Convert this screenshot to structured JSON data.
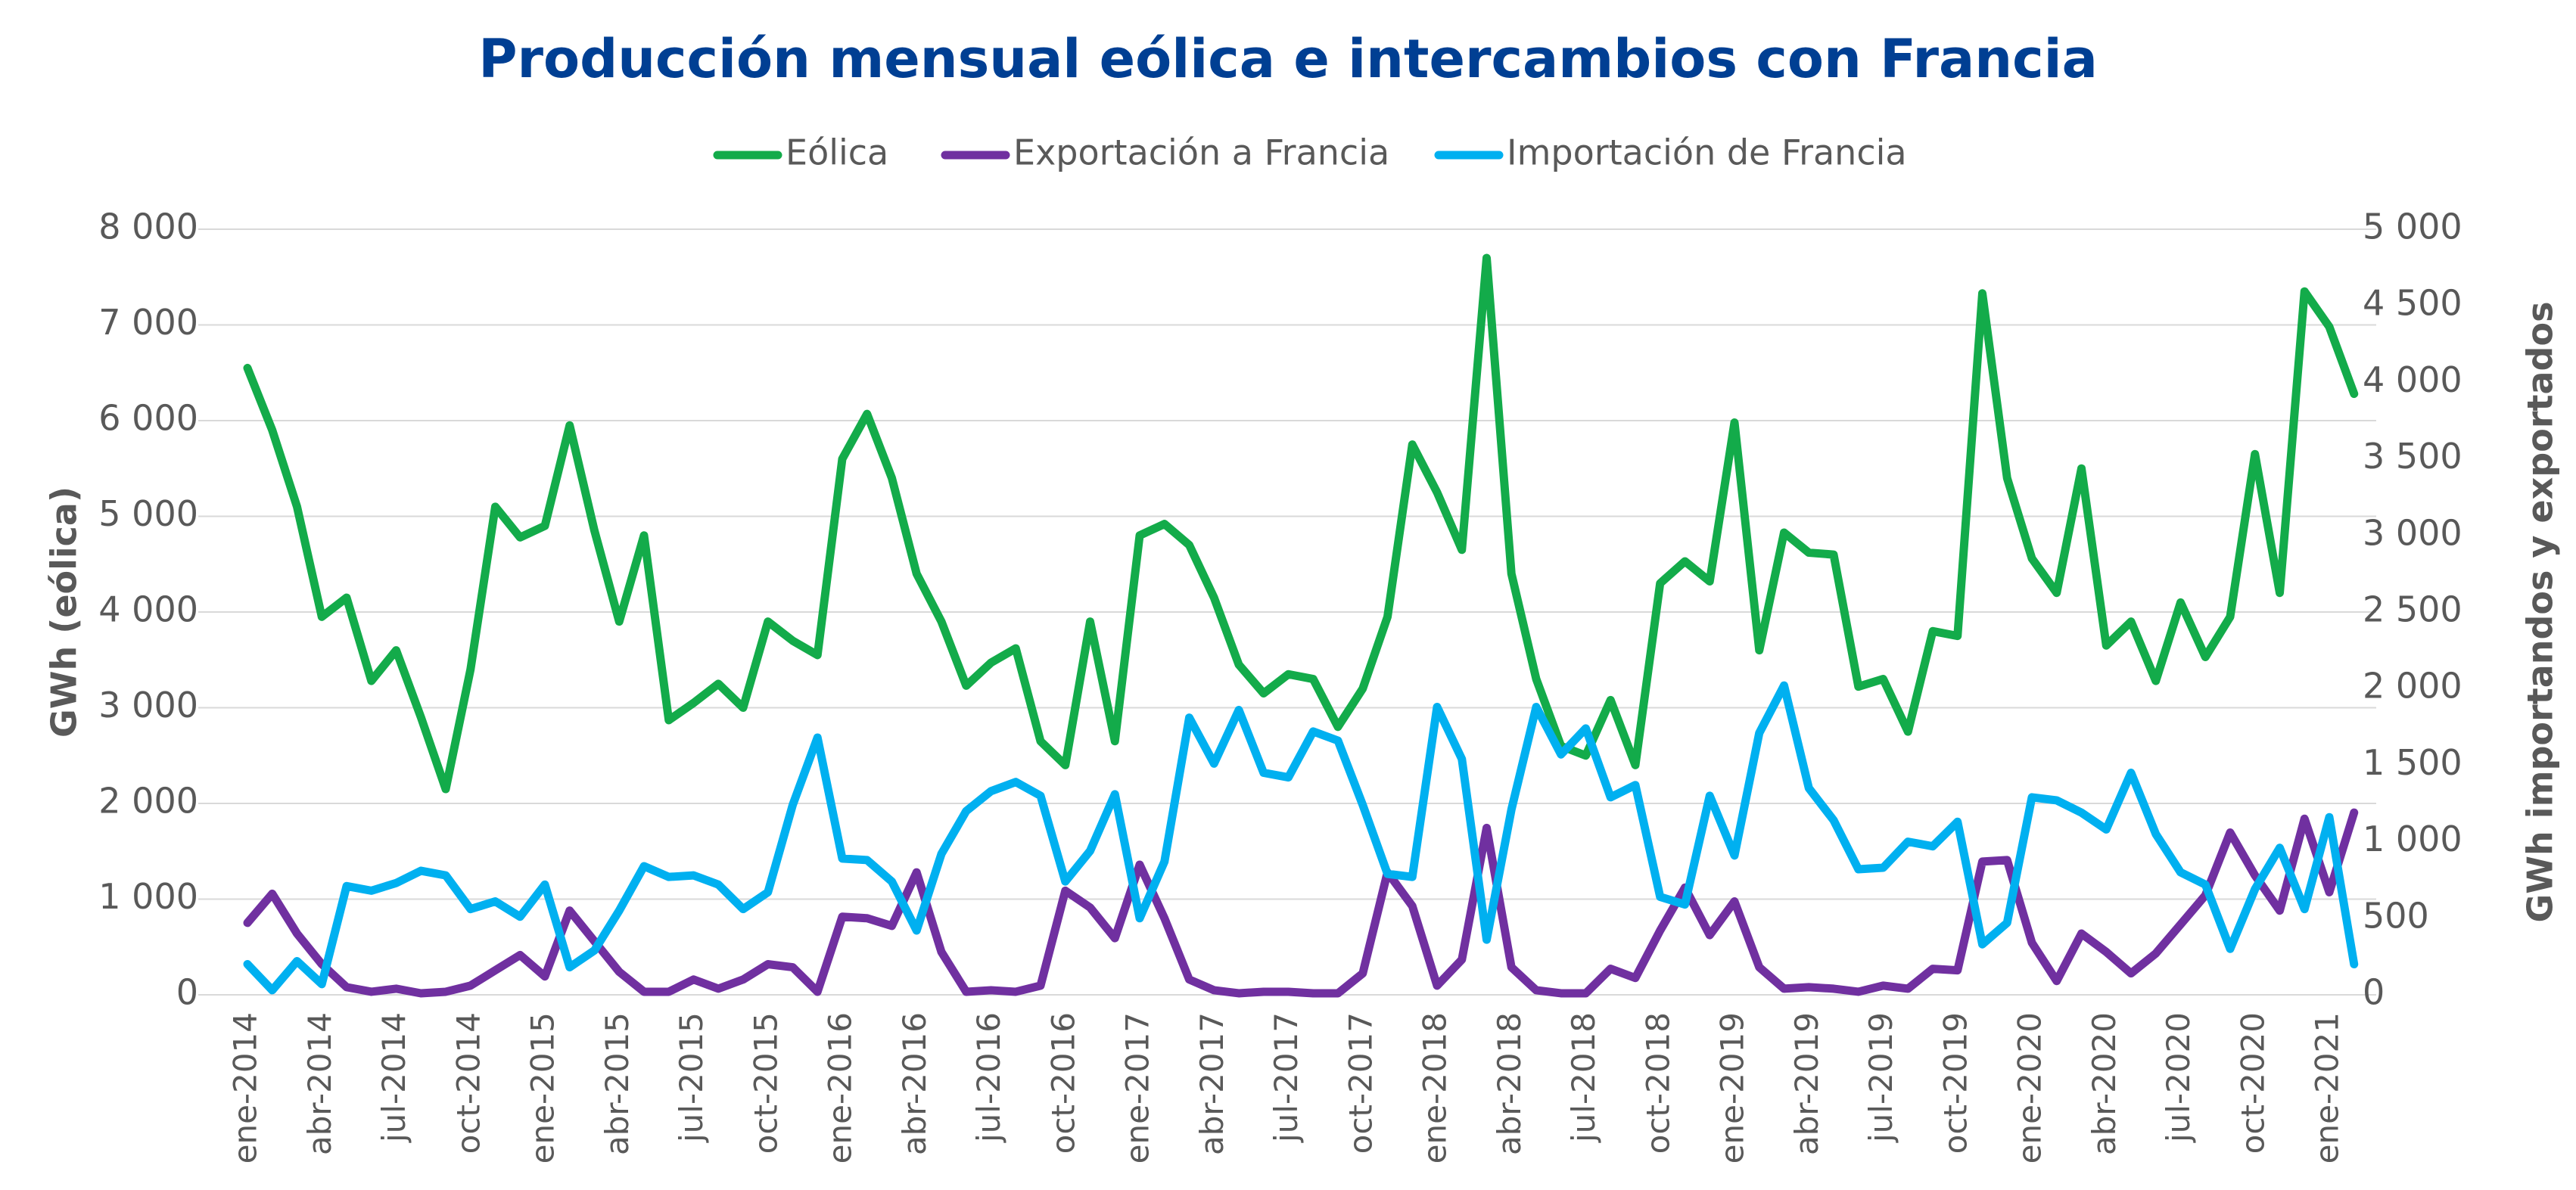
{
  "chart_data": {
    "type": "line",
    "title": "Producción mensual eólica e intercambios con Francia",
    "ylabel": "GWh (eólica)",
    "y2label": "GWh importandos y exportados",
    "categories": [
      "ene-2014",
      null,
      null,
      "abr-2014",
      null,
      null,
      "jul-2014",
      null,
      null,
      "oct-2014",
      null,
      null,
      "ene-2015",
      null,
      null,
      "abr-2015",
      null,
      null,
      "jul-2015",
      null,
      null,
      "oct-2015",
      null,
      null,
      "ene-2016",
      null,
      null,
      "abr-2016",
      null,
      null,
      "jul-2016",
      null,
      null,
      "oct-2016",
      null,
      null,
      "ene-2017",
      null,
      null,
      "abr-2017",
      null,
      null,
      "jul-2017",
      null,
      null,
      "oct-2017",
      null,
      null,
      "ene-2018",
      null,
      null,
      "abr-2018",
      null,
      null,
      "jul-2018",
      null,
      null,
      "oct-2018",
      null,
      null,
      "ene-2019",
      null,
      null,
      "abr-2019",
      null,
      null,
      "jul-2019",
      null,
      null,
      "oct-2019",
      null,
      null,
      "ene-2020",
      null,
      null,
      "abr-2020",
      null,
      null,
      "jul-2020",
      null,
      null,
      "oct-2020",
      null,
      null,
      "ene-2021",
      null
    ],
    "series": [
      {
        "name": "Eólica",
        "color": "#13ab4a",
        "axis": "y",
        "values": [
          6550,
          5900,
          5100,
          3950,
          4150,
          3280,
          3600,
          2900,
          2150,
          3400,
          5100,
          4780,
          4900,
          5950,
          4850,
          3900,
          4800,
          2870,
          3050,
          3250,
          3000,
          3900,
          3700,
          3550,
          5600,
          6070,
          5400,
          4400,
          3900,
          3230,
          3470,
          3620,
          2650,
          2400,
          3900,
          2650,
          4800,
          4920,
          4700,
          4150,
          3450,
          3150,
          3350,
          3300,
          2800,
          3200,
          3950,
          5750,
          5250,
          4650,
          7700,
          4400,
          3300,
          2600,
          2500,
          3080,
          2400,
          4300,
          4530,
          4320,
          5980,
          3600,
          4830,
          4620,
          4600,
          3220,
          3300,
          2750,
          3800,
          3750,
          7330,
          5400,
          4560,
          4200,
          5500,
          3650,
          3900,
          3280,
          4100,
          3530,
          3950,
          5650,
          4200,
          7350,
          6980,
          6280
        ]
      },
      {
        "name": "Exportación a Francia",
        "color": "#7030a0",
        "axis": "y2",
        "values": [
          470,
          660,
          400,
          200,
          50,
          20,
          40,
          10,
          20,
          60,
          160,
          260,
          120,
          550,
          350,
          150,
          20,
          20,
          100,
          40,
          100,
          200,
          180,
          20,
          510,
          500,
          450,
          800,
          280,
          20,
          30,
          20,
          60,
          680,
          570,
          370,
          850,
          500,
          100,
          30,
          10,
          20,
          20,
          10,
          10,
          140,
          800,
          580,
          60,
          230,
          1090,
          180,
          30,
          10,
          10,
          170,
          110,
          420,
          700,
          390,
          610,
          180,
          40,
          50,
          40,
          20,
          60,
          40,
          170,
          160,
          870,
          880,
          340,
          90,
          400,
          280,
          140,
          270,
          460,
          650,
          1060,
          780,
          550,
          1150,
          670,
          1190
        ]
      },
      {
        "name": "Importación de Francia",
        "color": "#00b0f0",
        "axis": "y2",
        "values": [
          200,
          30,
          220,
          70,
          710,
          680,
          730,
          810,
          780,
          560,
          610,
          510,
          720,
          180,
          290,
          550,
          840,
          770,
          780,
          720,
          560,
          670,
          1240,
          1680,
          890,
          880,
          740,
          420,
          920,
          1200,
          1330,
          1390,
          1300,
          740,
          940,
          1310,
          500,
          870,
          1810,
          1510,
          1860,
          1450,
          1420,
          1720,
          1660,
          1240,
          790,
          770,
          1880,
          1540,
          360,
          1210,
          1880,
          1570,
          1740,
          1290,
          1370,
          640,
          590,
          1300,
          910,
          1710,
          2020,
          1350,
          1140,
          820,
          830,
          1000,
          970,
          1130,
          330,
          470,
          1290,
          1270,
          1190,
          1080,
          1450,
          1050,
          800,
          720,
          300,
          690,
          960,
          560,
          1160,
          200
        ]
      }
    ],
    "ylim": [
      0,
      8000
    ],
    "yticks": [
      0,
      {
        "value": 1000,
        "label": "1 000"
      },
      {
        "value": 2000,
        "label": "2 000"
      },
      {
        "value": 3000,
        "label": "3 000"
      },
      {
        "value": 4000,
        "label": "4 000"
      },
      {
        "value": 5000,
        "label": "5 000"
      },
      {
        "value": 6000,
        "label": "6 000"
      },
      {
        "value": 7000,
        "label": "7 000"
      },
      {
        "value": 8000,
        "label": "8 000"
      }
    ],
    "y2lim": [
      0,
      5000
    ],
    "y2ticks": [
      0,
      500,
      {
        "value": 1000,
        "label": "1 000"
      },
      {
        "value": 1500,
        "label": "1 500"
      },
      {
        "value": 2000,
        "label": "2 000"
      },
      {
        "value": 2500,
        "label": "2 500"
      },
      {
        "value": 3000,
        "label": "3 000"
      },
      {
        "value": 3500,
        "label": "3 500"
      },
      {
        "value": 4000,
        "label": "4 000"
      },
      {
        "value": 4500,
        "label": "4 500"
      },
      {
        "value": 5000,
        "label": "5 000"
      }
    ],
    "grid": true
  }
}
